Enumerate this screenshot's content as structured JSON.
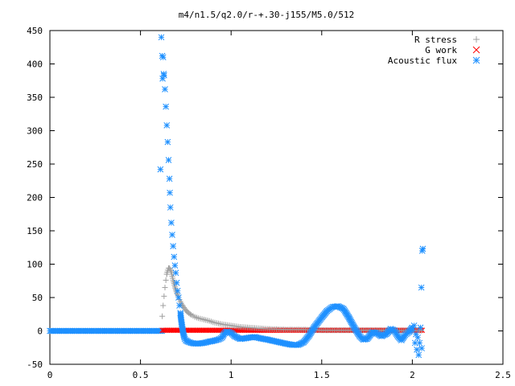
{
  "chart_data": {
    "type": "scatter",
    "title": "m4/n1.5/q2.0/r-+.30-j155/M5.0/512",
    "xlabel": "",
    "ylabel": "",
    "xlim": [
      0,
      2.5
    ],
    "ylim": [
      -50,
      450
    ],
    "xticks": [
      "0",
      "0.5",
      "1",
      "1.5",
      "2",
      "2.5"
    ],
    "yticks": [
      "-50",
      "0",
      "50",
      "100",
      "150",
      "200",
      "250",
      "300",
      "350",
      "400",
      "450"
    ],
    "grid": false,
    "legend_position": "top-right",
    "series": [
      {
        "name": "R stress",
        "marker": "+",
        "color": "#a0a0a0",
        "points": [
          [
            0.62,
            22
          ],
          [
            0.625,
            38
          ],
          [
            0.63,
            52
          ],
          [
            0.635,
            65
          ],
          [
            0.64,
            76
          ],
          [
            0.645,
            85
          ],
          [
            0.65,
            91
          ],
          [
            0.655,
            94
          ],
          [
            0.66,
            94
          ],
          [
            0.665,
            92
          ],
          [
            0.67,
            88
          ],
          [
            0.675,
            82
          ],
          [
            0.68,
            76
          ],
          [
            0.69,
            66
          ],
          [
            0.7,
            57
          ],
          [
            0.71,
            50
          ],
          [
            0.72,
            44
          ],
          [
            0.73,
            39
          ],
          [
            0.74,
            35
          ],
          [
            0.75,
            31
          ],
          [
            0.76,
            28
          ],
          [
            0.78,
            24
          ],
          [
            0.8,
            21
          ],
          [
            0.82,
            19
          ],
          [
            0.85,
            17
          ],
          [
            0.88,
            15
          ],
          [
            0.9,
            13
          ],
          [
            0.95,
            10
          ],
          [
            1.0,
            8
          ],
          [
            1.05,
            6
          ],
          [
            1.1,
            5
          ],
          [
            1.15,
            4
          ],
          [
            1.2,
            3
          ],
          [
            1.3,
            2
          ],
          [
            1.4,
            2
          ],
          [
            1.5,
            1
          ],
          [
            1.6,
            1
          ],
          [
            1.7,
            1
          ],
          [
            1.8,
            1
          ],
          [
            1.9,
            0.5
          ],
          [
            2.0,
            0.5
          ],
          [
            2.05,
            0.5
          ]
        ]
      },
      {
        "name": "G work",
        "marker": "x",
        "color": "#ff0000",
        "x_range": [
          0.62,
          2.06
        ],
        "value": 1
      },
      {
        "name": "Acoustic flux",
        "marker": "*",
        "color": "#1e90ff",
        "flat_segment": {
          "x_range": [
            0,
            0.62
          ],
          "value": 0
        },
        "points": [
          [
            0.61,
            242
          ],
          [
            0.615,
            440
          ],
          [
            0.62,
            412
          ],
          [
            0.622,
            378
          ],
          [
            0.625,
            410
          ],
          [
            0.628,
            385
          ],
          [
            0.63,
            383
          ],
          [
            0.635,
            362
          ],
          [
            0.64,
            336
          ],
          [
            0.645,
            308
          ],
          [
            0.65,
            283
          ],
          [
            0.655,
            256
          ],
          [
            0.66,
            228
          ],
          [
            0.662,
            207
          ],
          [
            0.665,
            185
          ],
          [
            0.67,
            162
          ],
          [
            0.675,
            144
          ],
          [
            0.68,
            127
          ],
          [
            0.685,
            111
          ],
          [
            0.69,
            98
          ],
          [
            0.695,
            87
          ],
          [
            0.7,
            72
          ],
          [
            0.705,
            60
          ],
          [
            0.71,
            50
          ],
          [
            0.715,
            38
          ],
          [
            0.72,
            27
          ],
          [
            0.725,
            15
          ],
          [
            0.73,
            6
          ],
          [
            0.735,
            -2
          ],
          [
            0.74,
            -8
          ],
          [
            0.745,
            -12
          ],
          [
            0.75,
            -14
          ],
          [
            0.76,
            -16
          ],
          [
            0.78,
            -18
          ],
          [
            0.8,
            -19
          ],
          [
            0.82,
            -19
          ],
          [
            0.85,
            -18
          ],
          [
            0.88,
            -16
          ],
          [
            0.9,
            -15
          ],
          [
            0.93,
            -13
          ],
          [
            0.95,
            -10
          ],
          [
            0.96,
            -5
          ],
          [
            0.97,
            -2
          ],
          [
            0.98,
            -1
          ],
          [
            1.0,
            -3
          ],
          [
            1.02,
            -8
          ],
          [
            1.05,
            -12
          ],
          [
            1.08,
            -11
          ],
          [
            1.1,
            -10
          ],
          [
            1.13,
            -9
          ],
          [
            1.16,
            -11
          ],
          [
            1.2,
            -13
          ],
          [
            1.25,
            -16
          ],
          [
            1.3,
            -19
          ],
          [
            1.34,
            -21
          ],
          [
            1.37,
            -21
          ],
          [
            1.4,
            -17
          ],
          [
            1.43,
            -7
          ],
          [
            1.46,
            6
          ],
          [
            1.5,
            20
          ],
          [
            1.53,
            30
          ],
          [
            1.56,
            36
          ],
          [
            1.59,
            37
          ],
          [
            1.62,
            33
          ],
          [
            1.65,
            20
          ],
          [
            1.68,
            5
          ],
          [
            1.71,
            -8
          ],
          [
            1.73,
            -13
          ],
          [
            1.75,
            -12
          ],
          [
            1.78,
            -2
          ],
          [
            1.8,
            -3
          ],
          [
            1.83,
            -8
          ],
          [
            1.86,
            -4
          ],
          [
            1.88,
            3
          ],
          [
            1.9,
            1
          ],
          [
            1.92,
            -8
          ],
          [
            1.94,
            -14
          ],
          [
            1.96,
            -6
          ],
          [
            1.98,
            -2
          ],
          [
            2.0,
            5
          ],
          [
            2.01,
            8
          ],
          [
            2.015,
            -18
          ],
          [
            2.02,
            -5
          ],
          [
            2.025,
            -28
          ],
          [
            2.03,
            -10
          ],
          [
            2.035,
            -36
          ],
          [
            2.04,
            -18
          ],
          [
            2.045,
            5
          ],
          [
            2.05,
            65
          ],
          [
            2.052,
            -26
          ],
          [
            2.055,
            120
          ],
          [
            2.058,
            123
          ]
        ]
      }
    ]
  }
}
